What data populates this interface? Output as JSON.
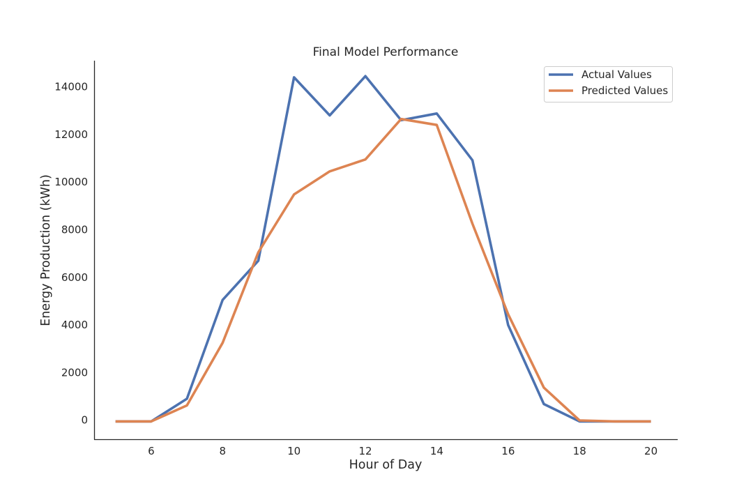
{
  "chart_data": {
    "type": "line",
    "title": "Final Model Performance",
    "xlabel": "Hour of Day",
    "ylabel": "Energy Production (kWh)",
    "xlim": [
      4.4,
      20.75
    ],
    "ylim": [
      -800,
      15100
    ],
    "xticks": [
      6,
      8,
      10,
      12,
      14,
      16,
      18,
      20
    ],
    "yticks": [
      0,
      2000,
      4000,
      6000,
      8000,
      10000,
      12000,
      14000
    ],
    "grid": false,
    "legend_position": "top-right",
    "x": [
      5,
      6,
      7,
      8,
      9,
      10,
      11,
      12,
      13,
      14,
      15,
      16,
      17,
      18,
      19,
      20
    ],
    "series": [
      {
        "name": "Actual Values",
        "color": "#4c72b0",
        "values": [
          -50,
          -50,
          900,
          5050,
          6700,
          14400,
          12800,
          14450,
          12600,
          12880,
          10920,
          4000,
          680,
          -50,
          -50,
          -50
        ]
      },
      {
        "name": "Predicted Values",
        "color": "#dd8452",
        "values": [
          -50,
          -50,
          620,
          3250,
          7050,
          9480,
          10450,
          10950,
          12650,
          12400,
          8250,
          4450,
          1370,
          -10,
          -50,
          -50
        ]
      }
    ]
  }
}
